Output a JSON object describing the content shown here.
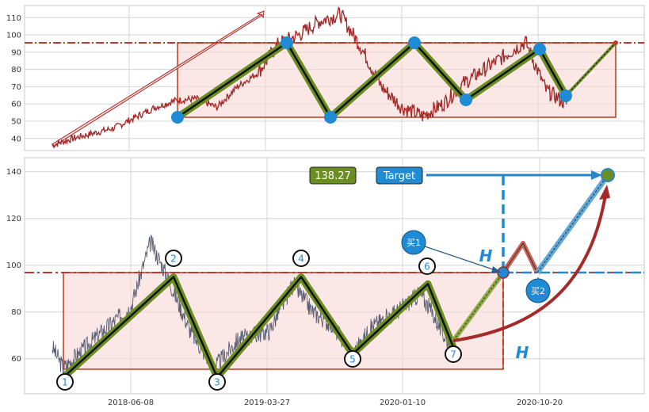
{
  "chart_data": [
    {
      "type": "line",
      "ylim": [
        33,
        117
      ],
      "yticks": [
        40,
        50,
        60,
        70,
        80,
        90,
        100,
        110
      ],
      "grid": true,
      "resistance": 95,
      "support": 52,
      "series": [
        {
          "x": [
            0,
            0.04,
            0.08,
            0.12,
            0.16,
            0.2,
            0.24,
            0.28,
            0.32,
            0.36,
            0.4,
            0.44,
            0.48,
            0.52,
            0.56,
            0.6,
            0.64,
            0.68,
            0.72,
            0.76,
            0.8,
            0.84,
            0.88,
            0.92,
            0.96,
            1.0
          ],
          "values": [
            36,
            40,
            43,
            46,
            52,
            58,
            62,
            63,
            58,
            70,
            78,
            95,
            100,
            108,
            112,
            93,
            70,
            58,
            53,
            60,
            72,
            80,
            88,
            96,
            68,
            60
          ]
        }
      ],
      "zigzag": [
        {
          "x": 0.41,
          "y": 52
        },
        {
          "x": 0.66,
          "y": 95
        },
        {
          "x": 0.76,
          "y": 52
        },
        {
          "x": 0.95,
          "y": 95
        }
      ]
    },
    {
      "type": "line",
      "ylim": [
        45,
        146
      ],
      "yticks": [
        60,
        80,
        100,
        120,
        140
      ],
      "xticks": [
        "2018-06-08",
        "2019-03-27",
        "2020-01-10",
        "2020-10-20"
      ],
      "grid": true,
      "resistance": 95,
      "support": 52,
      "pivots": [
        {
          "label": "1",
          "y": 52
        },
        {
          "label": "2",
          "y": 95
        },
        {
          "label": "3",
          "y": 52
        },
        {
          "label": "4",
          "y": 95
        },
        {
          "label": "5",
          "y": 62
        },
        {
          "label": "6",
          "y": 92
        },
        {
          "label": "7",
          "y": 65
        }
      ],
      "breakout": 95,
      "target": 138.27,
      "annotations": {
        "value_badge": "138.27",
        "target_label": "Target",
        "buy1_label": "买1",
        "buy2_label": "买2",
        "height_label": "H"
      }
    }
  ],
  "colors": {
    "price": "#a52a2a",
    "price_lower": "#5a5f73",
    "box_fill": "#f8d7d3",
    "box_stroke": "#c0391b",
    "zigzag_outer": "#6b8e23",
    "zigzag_inner": "#111111",
    "pivot_blue": "#1e8bd4",
    "resistance_line": "#c0392b",
    "target_green": "#6b8e23",
    "arrow_red": "#a52a2a"
  }
}
